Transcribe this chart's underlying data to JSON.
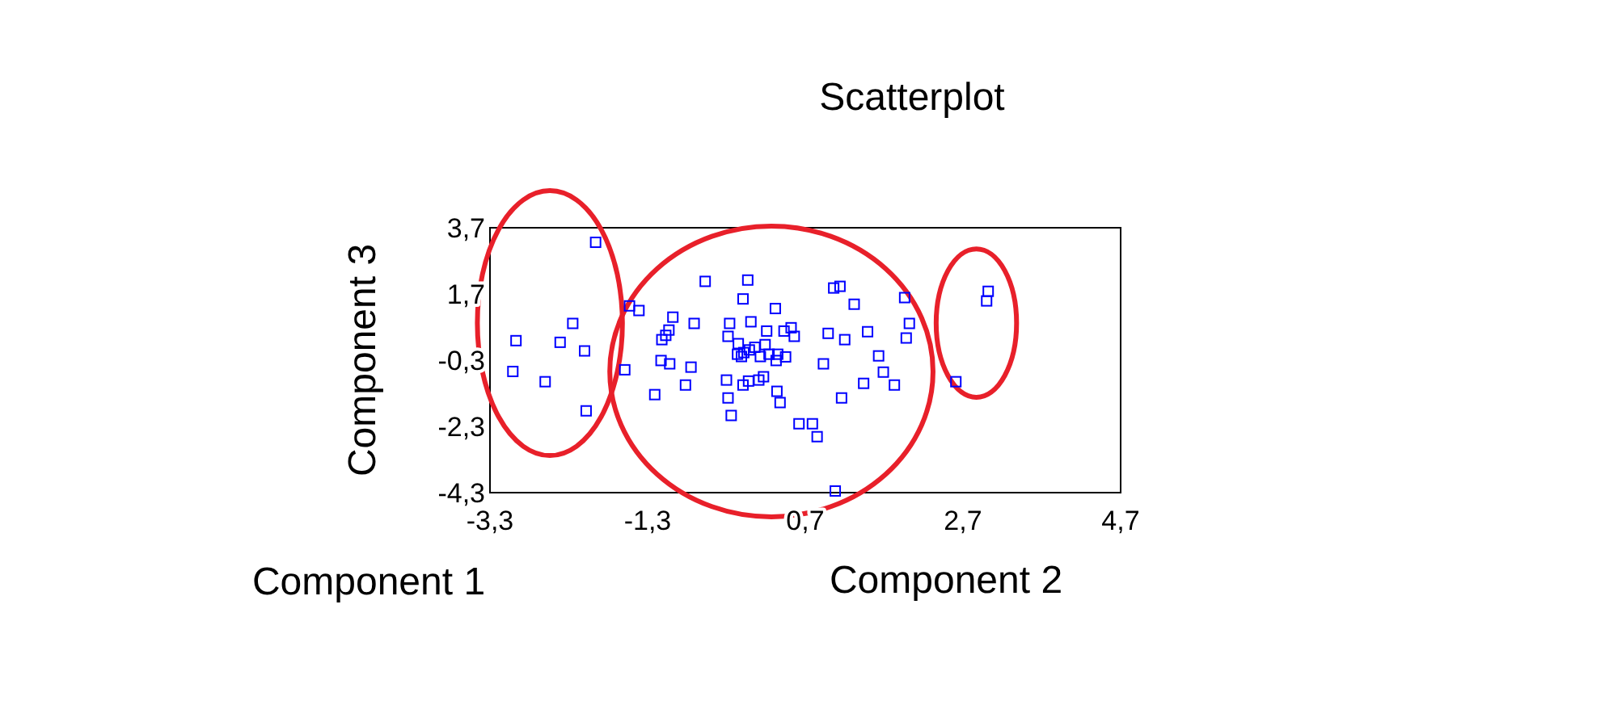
{
  "chart_data": {
    "type": "scatter",
    "title": "Scatterplot",
    "xlabel": "Component 2",
    "ylabel": "Component 3",
    "annotations": [
      "Component 1"
    ],
    "marker": "square",
    "grid": false,
    "xlim": [
      -3.3,
      4.7
    ],
    "xticks": [
      {
        "value": -3.3,
        "label": "-3,3"
      },
      {
        "value": -1.3,
        "label": "-1,3"
      },
      {
        "value": 0.7,
        "label": "0,7"
      },
      {
        "value": 2.7,
        "label": "2,7"
      },
      {
        "value": 4.7,
        "label": "4,7"
      }
    ],
    "ylim": [
      -4.3,
      3.7
    ],
    "yticks": [
      {
        "value": 3.7,
        "label": "3,7"
      },
      {
        "value": 1.7,
        "label": "1,7"
      },
      {
        "value": -0.3,
        "label": "-0,3"
      },
      {
        "value": -2.3,
        "label": "-2,3"
      },
      {
        "value": -4.3,
        "label": "-4,3"
      }
    ],
    "series": [
      {
        "color": "#0000ff",
        "x": [
          -1.96,
          -2.97,
          -3.01,
          -2.6,
          -2.41,
          -2.25,
          -2.1,
          -2.08,
          -1.53,
          -1.41,
          -1.59,
          -1.21,
          -1.13,
          -1.02,
          -0.75,
          -0.82,
          -0.98,
          -0.71,
          -1.12,
          -1.07,
          -1.03,
          -0.57,
          -0.03,
          -0.09,
          0.32,
          -0.26,
          0.01,
          -0.28,
          0.21,
          0.43,
          0.52,
          0.56,
          -0.15,
          0.19,
          0.06,
          -0.01,
          -0.08,
          -0.16,
          -0.11,
          0.13,
          0.24,
          0.35,
          0.33,
          0.45,
          -0.3,
          -0.09,
          -0.02,
          0.11,
          0.17,
          -0.28,
          0.34,
          0.38,
          -0.24,
          0.62,
          0.79,
          0.85,
          1.08,
          1.06,
          1.14,
          1.32,
          0.99,
          1.2,
          1.49,
          0.93,
          1.63,
          1.69,
          1.44,
          1.83,
          1.16,
          1.96,
          2.02,
          1.98,
          3.02,
          3.0,
          2.61
        ],
        "values": [
          3.26,
          0.29,
          -0.64,
          -0.95,
          0.24,
          0.81,
          -0.02,
          -1.83,
          1.34,
          1.2,
          -0.59,
          -1.34,
          -0.31,
          -0.41,
          -0.51,
          -1.05,
          1.0,
          0.81,
          0.32,
          0.45,
          0.61,
          2.08,
          2.12,
          1.55,
          1.26,
          0.81,
          0.86,
          0.42,
          0.58,
          0.58,
          0.68,
          0.42,
          0.2,
          0.17,
          0.09,
          0.01,
          -0.07,
          -0.12,
          -0.19,
          -0.19,
          -0.12,
          -0.12,
          -0.31,
          -0.2,
          -0.9,
          -1.05,
          -0.93,
          -0.9,
          -0.8,
          -1.44,
          -1.24,
          -1.58,
          -1.97,
          -2.22,
          -2.22,
          -2.61,
          -4.25,
          1.88,
          1.93,
          1.39,
          0.51,
          0.32,
          0.56,
          -0.41,
          -0.17,
          -0.66,
          -1.0,
          -1.05,
          -1.44,
          1.59,
          0.81,
          0.37,
          1.78,
          1.49,
          -0.95
        ]
      }
    ]
  }
}
